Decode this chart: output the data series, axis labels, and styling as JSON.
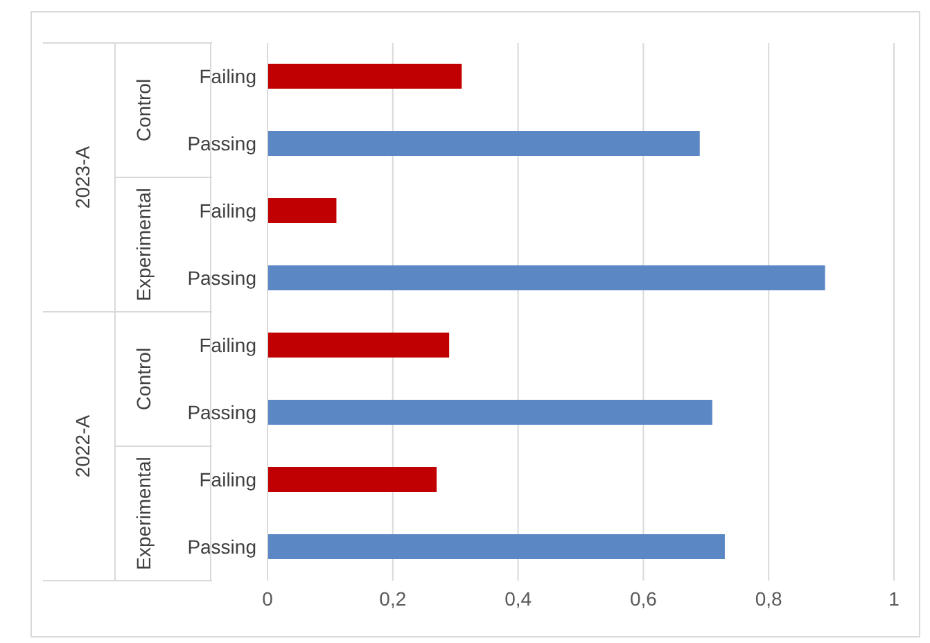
{
  "chart_data": {
    "type": "bar",
    "orientation": "horizontal",
    "categories": [
      "Failing",
      "Passing",
      "Failing",
      "Passing",
      "Failing",
      "Passing",
      "Failing",
      "Passing"
    ],
    "values": [
      0.31,
      0.69,
      0.11,
      0.89,
      0.29,
      0.71,
      0.27,
      0.73
    ],
    "colors": [
      "#c00000",
      "#5b87c5",
      "#c00000",
      "#5b87c5",
      "#c00000",
      "#5b87c5",
      "#c00000",
      "#5b87c5"
    ],
    "xlim": [
      0,
      1
    ],
    "xticks": [
      0,
      {
        "value": 0.2,
        "label": "0,2"
      },
      {
        "value": 0.4,
        "label": "0,4"
      },
      {
        "value": 0.6,
        "label": "0,6"
      },
      {
        "value": 0.8,
        "label": "0,8"
      },
      1
    ],
    "annotations": [
      "2023-A",
      "Control",
      "Experimental",
      "2022-A",
      "Control",
      "Experimental"
    ],
    "grid": "x",
    "legend": false
  }
}
